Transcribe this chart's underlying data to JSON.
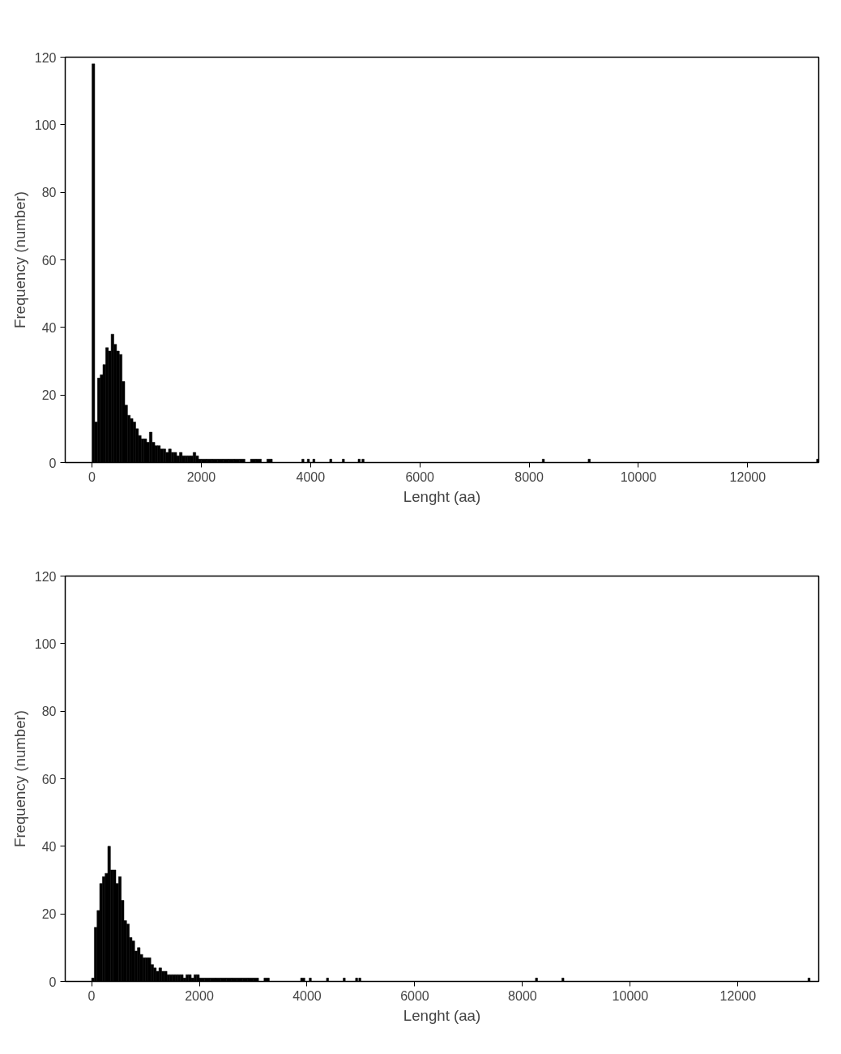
{
  "chart_data": [
    {
      "type": "histogram",
      "color": "#000000",
      "xlabel": "Lenght (aa)",
      "ylabel": "Frequency (number)",
      "xlim": [
        -490,
        13300
      ],
      "ylim": [
        0,
        120
      ],
      "xticks": [
        0,
        2000,
        4000,
        6000,
        8000,
        10000,
        12000
      ],
      "yticks": [
        0,
        20,
        40,
        60,
        80,
        100,
        120
      ],
      "bins": [
        0,
        50,
        100,
        150,
        200,
        250,
        300,
        350,
        400,
        450,
        500,
        550,
        600,
        650,
        700,
        750,
        800,
        850,
        900,
        950,
        1000,
        1050,
        1100,
        1150,
        1200,
        1250,
        1300,
        1350,
        1400,
        1450,
        1500,
        1550,
        1600,
        1650,
        1700,
        1750,
        1800,
        1850,
        1900,
        1950,
        2000,
        2100,
        2200,
        2300,
        2400,
        2500,
        2600,
        2700,
        2800,
        2900,
        3000,
        3100,
        3200,
        3300,
        3840,
        3880,
        3940,
        3980,
        4040,
        4080,
        4350,
        4390,
        4580,
        4620,
        4870,
        4910,
        4940,
        4980,
        8240,
        8280,
        9080,
        9120,
        13260,
        13300
      ],
      "values": [
        118,
        12,
        25,
        26,
        29,
        34,
        33,
        38,
        35,
        33,
        32,
        24,
        17,
        14,
        13,
        12,
        10,
        8,
        7,
        7,
        6,
        9,
        6,
        5,
        5,
        4,
        4,
        3,
        4,
        3,
        3,
        2,
        3,
        2,
        2,
        2,
        2,
        3,
        2,
        1,
        1,
        1,
        1,
        1,
        1,
        1,
        1,
        1,
        0,
        1,
        1,
        0,
        1,
        0,
        1,
        0,
        1,
        0,
        1,
        0,
        1,
        0,
        1,
        0,
        1,
        0,
        1,
        0,
        1,
        0,
        1,
        0,
        1
      ]
    },
    {
      "type": "histogram",
      "color": "#000000",
      "xlabel": "Lenght (aa)",
      "ylabel": "Frequency (number)",
      "xlim": [
        -490,
        13500
      ],
      "ylim": [
        0,
        120
      ],
      "xticks": [
        0,
        2000,
        4000,
        6000,
        8000,
        10000,
        12000
      ],
      "yticks": [
        0,
        20,
        40,
        60,
        80,
        100,
        120
      ],
      "bins": [
        0,
        50,
        100,
        150,
        200,
        250,
        300,
        350,
        400,
        450,
        500,
        550,
        600,
        650,
        700,
        750,
        800,
        850,
        900,
        950,
        1000,
        1050,
        1100,
        1150,
        1200,
        1250,
        1300,
        1350,
        1400,
        1450,
        1500,
        1550,
        1600,
        1650,
        1700,
        1750,
        1800,
        1850,
        1900,
        1950,
        2000,
        2100,
        2200,
        2300,
        2400,
        2500,
        2600,
        2700,
        2800,
        2900,
        3000,
        3100,
        3200,
        3300,
        3880,
        3960,
        4040,
        4080,
        4360,
        4400,
        4670,
        4710,
        4900,
        4940,
        4960,
        5000,
        8240,
        8280,
        8730,
        8770,
        13300,
        13340
      ],
      "values": [
        1,
        16,
        21,
        29,
        31,
        32,
        40,
        33,
        33,
        29,
        31,
        24,
        18,
        17,
        13,
        12,
        9,
        10,
        8,
        7,
        7,
        7,
        5,
        4,
        3,
        4,
        3,
        3,
        2,
        2,
        2,
        2,
        2,
        2,
        1,
        2,
        2,
        1,
        2,
        2,
        1,
        1,
        1,
        1,
        1,
        1,
        1,
        1,
        1,
        1,
        1,
        0,
        1,
        0,
        1,
        0,
        1,
        0,
        1,
        0,
        1,
        0,
        1,
        0,
        1,
        0,
        1,
        0,
        1,
        0,
        1
      ]
    }
  ]
}
